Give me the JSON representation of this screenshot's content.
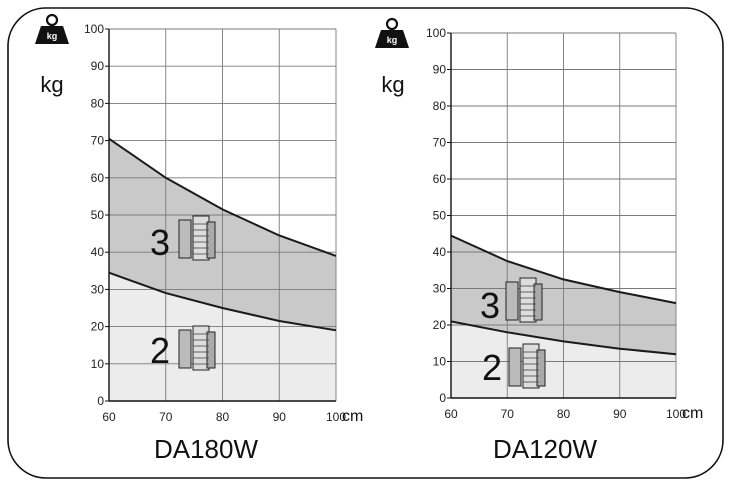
{
  "chart_data": [
    {
      "type": "area",
      "title": "DA180W",
      "ylabel": "kg",
      "xlabel": "cm",
      "weight_icon_label": "kg",
      "x_ticks": [
        "60",
        "70",
        "80",
        "90",
        "100"
      ],
      "y_ticks": [
        "0",
        "10",
        "20",
        "30",
        "40",
        "50",
        "60",
        "70",
        "80",
        "90",
        "100"
      ],
      "xlim": [
        60,
        100
      ],
      "ylim": [
        0,
        100
      ],
      "grid": true,
      "bands": [
        {
          "label": "2",
          "x": [
            60,
            70,
            80,
            90,
            100
          ],
          "lower": [
            0,
            0,
            0,
            0,
            0
          ],
          "upper": [
            34.5,
            29,
            25,
            21.5,
            19
          ]
        },
        {
          "label": "3",
          "x": [
            60,
            70,
            80,
            90,
            100
          ],
          "lower": [
            34.5,
            29,
            25,
            21.5,
            19
          ],
          "upper": [
            70.5,
            60,
            51.5,
            44.5,
            39
          ]
        }
      ]
    },
    {
      "type": "area",
      "title": "DA120W",
      "ylabel": "kg",
      "xlabel": "cm",
      "weight_icon_label": "kg",
      "x_ticks": [
        "60",
        "70",
        "80",
        "90",
        "100"
      ],
      "y_ticks": [
        "0",
        "10",
        "20",
        "30",
        "40",
        "50",
        "60",
        "70",
        "80",
        "90",
        "100"
      ],
      "xlim": [
        60,
        100
      ],
      "ylim": [
        0,
        100
      ],
      "grid": true,
      "bands": [
        {
          "label": "2",
          "x": [
            60,
            70,
            80,
            90,
            100
          ],
          "lower": [
            0,
            0,
            0,
            0,
            0
          ],
          "upper": [
            21,
            18,
            15.5,
            13.5,
            12
          ]
        },
        {
          "label": "3",
          "x": [
            60,
            70,
            80,
            90,
            100
          ],
          "lower": [
            21,
            18,
            15.5,
            13.5,
            12
          ],
          "upper": [
            44.5,
            37.5,
            32.5,
            29,
            26
          ]
        }
      ]
    }
  ]
}
